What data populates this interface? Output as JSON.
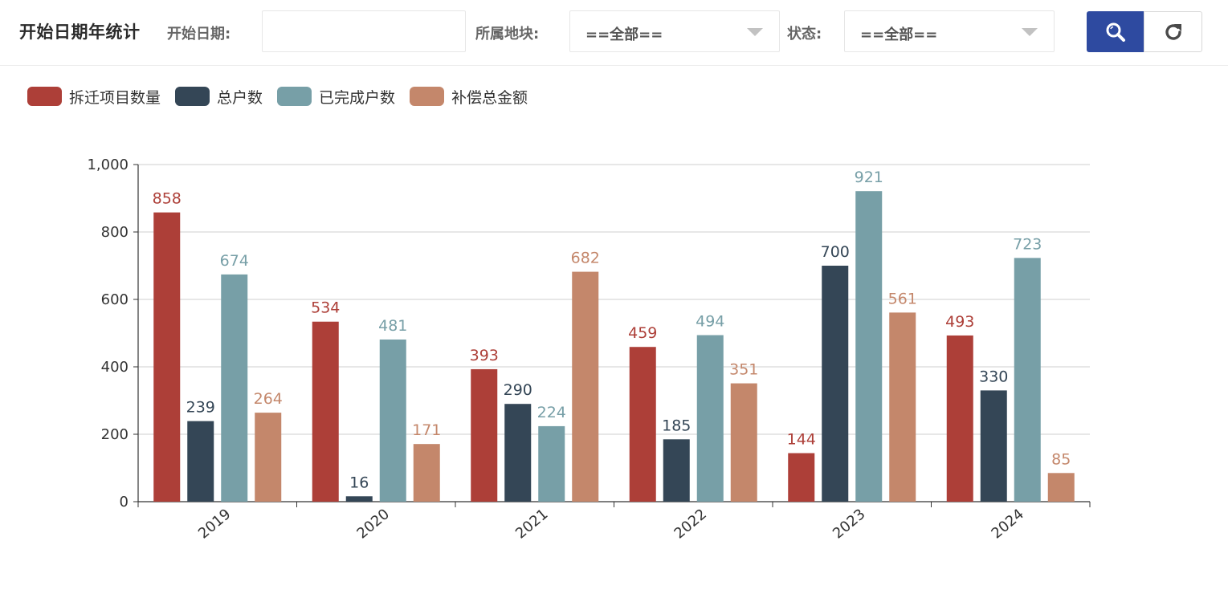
{
  "header": {
    "title": "开始日期年统计",
    "start_date_label": "开始日期:",
    "start_date_value": "",
    "region_label": "所属地块:",
    "region_value": "==全部==",
    "status_label": "状态:",
    "status_value": "==全部=="
  },
  "icons": {
    "search": "search-icon",
    "refresh": "refresh-icon"
  },
  "colors": {
    "primary_button": "#2e4aa0"
  },
  "chart_data": {
    "type": "bar",
    "categories": [
      "2019",
      "2020",
      "2021",
      "2022",
      "2023",
      "2024"
    ],
    "series": [
      {
        "name": "拆迁项目数量",
        "color": "#ad3f38",
        "values": [
          858,
          534,
          393,
          459,
          144,
          493
        ]
      },
      {
        "name": "总户数",
        "color": "#344656",
        "values": [
          239,
          16,
          290,
          185,
          700,
          330
        ]
      },
      {
        "name": "已完成户数",
        "color": "#779fa7",
        "values": [
          674,
          481,
          224,
          494,
          921,
          723
        ]
      },
      {
        "name": "补偿总金额",
        "color": "#c4876b",
        "values": [
          264,
          171,
          682,
          351,
          561,
          85
        ]
      }
    ],
    "ylim": [
      0,
      1000
    ],
    "yticks": [
      "0",
      "200",
      "400",
      "600",
      "800",
      "1,000"
    ],
    "grid": true,
    "legend_position": "top-left"
  }
}
